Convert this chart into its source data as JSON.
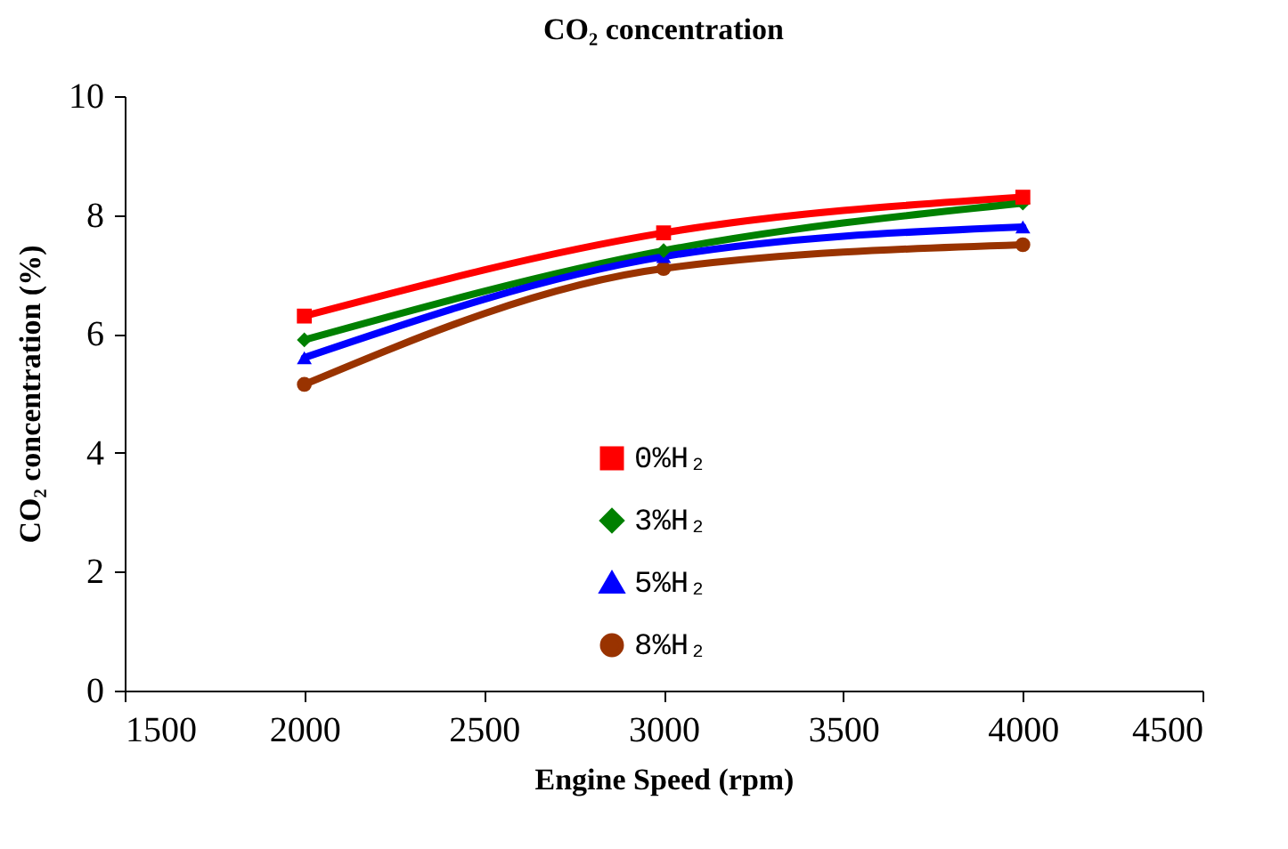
{
  "chart_data": {
    "type": "line",
    "title": "CO₂ concentration",
    "xlabel": "Engine Speed (rpm)",
    "ylabel": "CO₂ concentration (%)",
    "x": [
      2000,
      3000,
      4000
    ],
    "series": [
      {
        "name": "0%H₂",
        "color": "#ff0000",
        "marker": "square",
        "values": [
          6.3,
          7.7,
          8.3
        ]
      },
      {
        "name": "3%H₂",
        "color": "#008000",
        "marker": "diamond",
        "values": [
          5.9,
          7.4,
          8.2
        ]
      },
      {
        "name": "5%H₂",
        "color": "#0000ff",
        "marker": "triangle",
        "values": [
          5.6,
          7.3,
          7.8
        ]
      },
      {
        "name": "8%H₂",
        "color": "#993300",
        "marker": "circle",
        "values": [
          5.15,
          7.1,
          7.5
        ]
      }
    ],
    "xlim": [
      1500,
      4500
    ],
    "xticks": [
      1500,
      2000,
      2500,
      3000,
      3500,
      4000,
      4500
    ],
    "ylim": [
      0,
      10
    ],
    "yticks": [
      0,
      2,
      4,
      6,
      8,
      10
    ],
    "grid": false,
    "legend": "bottom",
    "line_style": "solid"
  }
}
